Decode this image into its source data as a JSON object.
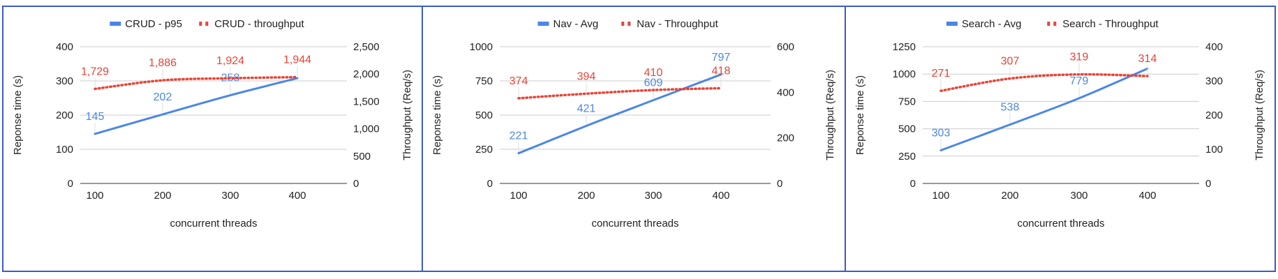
{
  "chart_data": [
    {
      "type": "line",
      "x": [
        100,
        200,
        300,
        400
      ],
      "xlabel": "concurrent threads",
      "ylabel": "Reponse time (s)",
      "y2label": "Throughput (Req/s)",
      "ylim": [
        0,
        400
      ],
      "yticks": [
        0,
        100,
        200,
        300,
        400
      ],
      "ytick_labels": [
        "0",
        "100",
        "200",
        "300",
        "400"
      ],
      "y2lim": [
        0,
        2500
      ],
      "y2ticks": [
        0,
        500,
        1000,
        1500,
        2000,
        2500
      ],
      "y2tick_labels": [
        "0",
        "500",
        "1,000",
        "1,500",
        "2,000",
        "2,500"
      ],
      "grid": true,
      "legend": "top",
      "series": [
        {
          "name": "CRUD - p95",
          "axis": "left",
          "style": "solid",
          "color": "#4a86e8",
          "values": [
            145,
            202,
            258,
            308
          ],
          "labels": [
            "145",
            "202",
            "258",
            ""
          ]
        },
        {
          "name": "CRUD - throughput",
          "axis": "right",
          "style": "dotted",
          "color": "#ea4335",
          "values": [
            1729,
            1886,
            1924,
            1944
          ],
          "labels": [
            "1,729",
            "1,886",
            "1,924",
            "1,944"
          ]
        }
      ]
    },
    {
      "type": "line",
      "x": [
        100,
        200,
        300,
        400
      ],
      "xlabel": "concurrent threads",
      "ylabel": "Reponse time (s)",
      "y2label": "Throughput (Req/s)",
      "ylim": [
        0,
        1000
      ],
      "yticks": [
        0,
        250,
        500,
        750,
        1000
      ],
      "ytick_labels": [
        "0",
        "250",
        "500",
        "750",
        "1000"
      ],
      "y2lim": [
        0,
        600
      ],
      "y2ticks": [
        0,
        200,
        400,
        600
      ],
      "y2tick_labels": [
        "0",
        "200",
        "400",
        "600"
      ],
      "grid": true,
      "legend": "top",
      "series": [
        {
          "name": "Nav - Avg",
          "axis": "left",
          "style": "solid",
          "color": "#4a86e8",
          "values": [
            221,
            421,
            609,
            797
          ],
          "labels": [
            "221",
            "421",
            "609",
            "797"
          ]
        },
        {
          "name": "Nav - Throughput",
          "axis": "right",
          "style": "dotted",
          "color": "#ea4335",
          "values": [
            374,
            394,
            410,
            418
          ],
          "labels": [
            "374",
            "394",
            "410",
            "418"
          ]
        }
      ]
    },
    {
      "type": "line",
      "x": [
        100,
        200,
        300,
        400
      ],
      "xlabel": "concurrent threads",
      "ylabel": "Reponse time (s)",
      "y2label": "Throughput (Req/s)",
      "ylim": [
        0,
        1250
      ],
      "yticks": [
        0,
        250,
        500,
        750,
        1000,
        1250
      ],
      "ytick_labels": [
        "0",
        "250",
        "500",
        "750",
        "1000",
        "1250"
      ],
      "y2lim": [
        0,
        400
      ],
      "y2ticks": [
        0,
        100,
        200,
        300,
        400
      ],
      "y2tick_labels": [
        "0",
        "100",
        "200",
        "300",
        "400"
      ],
      "grid": true,
      "legend": "top",
      "series": [
        {
          "name": "Search - Avg",
          "axis": "left",
          "style": "solid",
          "color": "#4a86e8",
          "values": [
            303,
            538,
            779,
            1050
          ],
          "labels": [
            "303",
            "538",
            "779",
            ""
          ]
        },
        {
          "name": "Search - Throughput",
          "axis": "right",
          "style": "dotted",
          "color": "#ea4335",
          "values": [
            271,
            307,
            319,
            314
          ],
          "labels": [
            "271",
            "307",
            "319",
            "314"
          ]
        }
      ]
    }
  ]
}
